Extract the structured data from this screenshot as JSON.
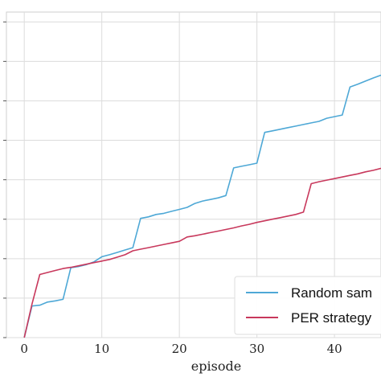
{
  "chart_data": {
    "type": "line",
    "xlabel": "episode",
    "ylabel": "",
    "title": "",
    "xlim": [
      -2.3,
      46
    ],
    "ylim": [
      0,
      8.25
    ],
    "x_ticks": [
      0,
      10,
      20,
      30,
      40
    ],
    "y_gridlines": 8,
    "grid": true,
    "legend_position": "bottom-right",
    "series": [
      {
        "name": "Random sam",
        "color": "#4ea8d6",
        "x": [
          0,
          1,
          2,
          3,
          4,
          5,
          6,
          7,
          8,
          9,
          10,
          11,
          12,
          13,
          14,
          15,
          16,
          17,
          18,
          19,
          20,
          21,
          22,
          23,
          24,
          25,
          26,
          27,
          28,
          29,
          30,
          31,
          32,
          33,
          34,
          35,
          36,
          37,
          38,
          39,
          40,
          41,
          42,
          43,
          44,
          45,
          46
        ],
        "values": [
          0.0,
          0.8,
          0.82,
          0.9,
          0.93,
          0.97,
          1.77,
          1.8,
          1.85,
          1.92,
          2.05,
          2.1,
          2.16,
          2.22,
          2.28,
          3.02,
          3.06,
          3.12,
          3.15,
          3.2,
          3.25,
          3.3,
          3.4,
          3.46,
          3.5,
          3.54,
          3.6,
          4.3,
          4.34,
          4.38,
          4.42,
          5.2,
          5.24,
          5.28,
          5.32,
          5.36,
          5.4,
          5.44,
          5.48,
          5.56,
          5.6,
          5.64,
          6.35,
          6.42,
          6.5,
          6.58,
          6.65
        ]
      },
      {
        "name": "PER strategy",
        "color": "#c8385c",
        "x": [
          0,
          1,
          2,
          3,
          4,
          5,
          6,
          7,
          8,
          9,
          10,
          11,
          12,
          13,
          14,
          15,
          16,
          17,
          18,
          19,
          20,
          21,
          22,
          23,
          24,
          25,
          26,
          27,
          28,
          29,
          30,
          31,
          32,
          33,
          34,
          35,
          36,
          37,
          38,
          39,
          40,
          41,
          42,
          43,
          44,
          45,
          46
        ],
        "values": [
          0.0,
          0.85,
          1.6,
          1.65,
          1.7,
          1.75,
          1.78,
          1.82,
          1.86,
          1.9,
          1.94,
          1.98,
          2.04,
          2.1,
          2.2,
          2.24,
          2.28,
          2.32,
          2.36,
          2.4,
          2.44,
          2.55,
          2.58,
          2.62,
          2.66,
          2.7,
          2.74,
          2.78,
          2.83,
          2.87,
          2.92,
          2.96,
          3.0,
          3.04,
          3.08,
          3.12,
          3.18,
          3.9,
          3.95,
          3.99,
          4.03,
          4.07,
          4.11,
          4.15,
          4.2,
          4.24,
          4.29
        ]
      }
    ]
  }
}
